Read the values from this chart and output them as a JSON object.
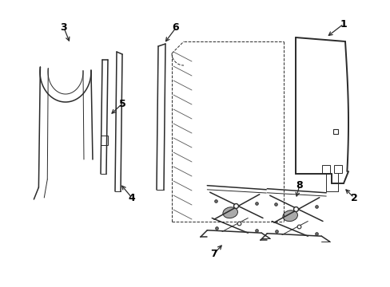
{
  "bg_color": "#ffffff",
  "line_color": "#2a2a2a",
  "label_color": "#000000",
  "figsize": [
    4.89,
    3.6
  ],
  "dpi": 100,
  "parts": {
    "part3_color": "#2a2a2a",
    "part5_color": "#2a2a2a"
  }
}
